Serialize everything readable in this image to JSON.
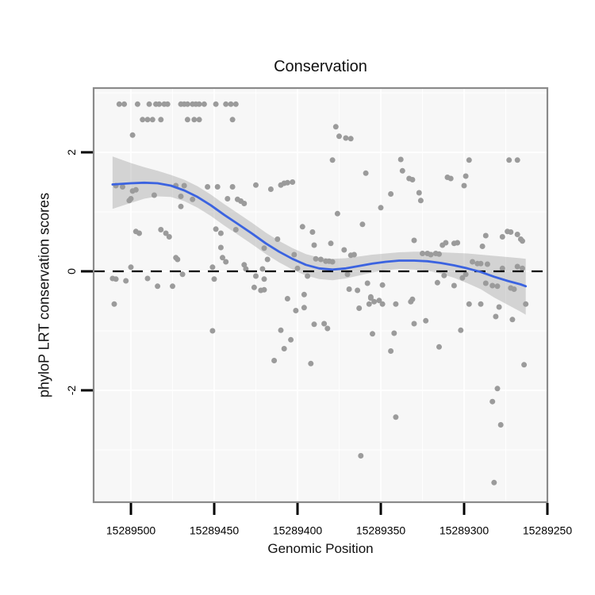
{
  "chart": {
    "title": "Conservation",
    "x_label": "Genomic Position",
    "y_label": "phyloP LRT conservation scores"
  },
  "style": {
    "panel_bg": "#f7f7f7",
    "grid_color": "#ffffff",
    "border_color": "#8a8a8a",
    "tick_color": "#000000",
    "point_color": "#9b9b9b",
    "smooth_color": "#3b63e0",
    "band_color": "rgba(120,120,120,0.28)",
    "reference_color": "#000000"
  },
  "chart_data": {
    "type": "scatter",
    "title": "Conservation",
    "xlabel": "Genomic Position",
    "ylabel": "phyloP LRT conservation scores",
    "legend": "none",
    "grid": "on",
    "x_axis": {
      "reversed": true,
      "value_at_left": 15289522.4,
      "value_at_right": 15289250,
      "ticks": [
        15289500,
        15289450,
        15289400,
        15289350,
        15289300,
        15289250
      ],
      "tick_labels": [
        "15289500",
        "15289450",
        "15289400",
        "15289350",
        "15289300",
        "15289250"
      ],
      "minor_ticks": [
        15289475,
        15289425,
        15289375,
        15289325,
        15289275
      ]
    },
    "y_axis": {
      "value_at_top": 3.08,
      "value_at_bottom": -3.88,
      "ticks": [
        2,
        0,
        -2
      ],
      "tick_labels": [
        "2",
        "0",
        "-2"
      ],
      "minor_ticks": [
        3,
        1,
        -1,
        -3
      ]
    },
    "reference_line": {
      "y": 0,
      "style": "dashed"
    },
    "smooth_line": {
      "name": "loess-smooth",
      "x": [
        15289511,
        15289500,
        15289492,
        15289484,
        15289476,
        15289468,
        15289460,
        15289452,
        15289444,
        15289436,
        15289427,
        15289419,
        15289411,
        15289403,
        15289395,
        15289387,
        15289379,
        15289371,
        15289363,
        15289355,
        15289347,
        15289339,
        15289330,
        15289322,
        15289314,
        15289306,
        15289298,
        15289290,
        15289282,
        15289274,
        15289266,
        15289263
      ],
      "y": [
        1.46,
        1.48,
        1.49,
        1.48,
        1.44,
        1.36,
        1.25,
        1.11,
        0.95,
        0.8,
        0.63,
        0.47,
        0.33,
        0.21,
        0.11,
        0.05,
        0.03,
        0.05,
        0.09,
        0.13,
        0.16,
        0.18,
        0.18,
        0.17,
        0.14,
        0.1,
        0.05,
        -0.01,
        -0.09,
        -0.16,
        -0.22,
        -0.25
      ]
    },
    "confidence_band": {
      "x": [
        15289511,
        15289500,
        15289492,
        15289484,
        15289476,
        15289468,
        15289460,
        15289452,
        15289444,
        15289436,
        15289427,
        15289419,
        15289411,
        15289403,
        15289395,
        15289387,
        15289379,
        15289371,
        15289363,
        15289355,
        15289347,
        15289339,
        15289330,
        15289322,
        15289314,
        15289306,
        15289298,
        15289290,
        15289282,
        15289274,
        15289266,
        15289263
      ],
      "upper": [
        1.93,
        1.82,
        1.75,
        1.69,
        1.62,
        1.54,
        1.43,
        1.29,
        1.13,
        0.98,
        0.81,
        0.65,
        0.51,
        0.39,
        0.29,
        0.23,
        0.21,
        0.22,
        0.25,
        0.28,
        0.3,
        0.32,
        0.33,
        0.33,
        0.32,
        0.31,
        0.3,
        0.28,
        0.26,
        0.24,
        0.22,
        0.21
      ],
      "lower": [
        1.05,
        1.15,
        1.22,
        1.26,
        1.25,
        1.18,
        1.07,
        0.93,
        0.77,
        0.62,
        0.45,
        0.29,
        0.15,
        0.03,
        -0.07,
        -0.13,
        -0.15,
        -0.12,
        -0.07,
        -0.02,
        0.02,
        0.04,
        0.03,
        0.01,
        -0.04,
        -0.11,
        -0.2,
        -0.3,
        -0.44,
        -0.56,
        -0.68,
        -0.73
      ]
    },
    "points": {
      "radius": 3.5,
      "xy": [
        [
          15289507,
          2.81
        ],
        [
          15289504,
          2.81
        ],
        [
          15289496,
          2.81
        ],
        [
          15289489,
          2.81
        ],
        [
          15289485,
          2.81
        ],
        [
          15289483,
          2.81
        ],
        [
          15289480,
          2.81
        ],
        [
          15289478,
          2.81
        ],
        [
          15289470,
          2.81
        ],
        [
          15289468,
          2.81
        ],
        [
          15289466,
          2.81
        ],
        [
          15289463,
          2.81
        ],
        [
          15289461,
          2.81
        ],
        [
          15289459,
          2.81
        ],
        [
          15289456,
          2.81
        ],
        [
          15289449,
          2.81
        ],
        [
          15289443,
          2.81
        ],
        [
          15289440,
          2.81
        ],
        [
          15289437,
          2.81
        ],
        [
          15289493,
          2.55
        ],
        [
          15289490,
          2.55
        ],
        [
          15289487,
          2.55
        ],
        [
          15289482,
          2.55
        ],
        [
          15289466,
          2.55
        ],
        [
          15289462,
          2.55
        ],
        [
          15289459,
          2.55
        ],
        [
          15289439,
          2.55
        ],
        [
          15289499,
          2.29
        ],
        [
          15289377,
          2.43
        ],
        [
          15289375,
          2.27
        ],
        [
          15289371,
          2.24
        ],
        [
          15289368,
          2.23
        ],
        [
          15289379,
          1.87
        ],
        [
          15289338,
          1.88
        ],
        [
          15289337,
          1.69
        ],
        [
          15289359,
          1.65
        ],
        [
          15289297,
          1.87
        ],
        [
          15289273,
          1.87
        ],
        [
          15289268,
          1.87
        ],
        [
          15289333,
          1.56
        ],
        [
          15289331,
          1.54
        ],
        [
          15289310,
          1.58
        ],
        [
          15289308,
          1.56
        ],
        [
          15289299,
          1.6
        ],
        [
          15289300,
          1.44
        ],
        [
          15289327,
          1.32
        ],
        [
          15289326,
          1.19
        ],
        [
          15289509,
          1.44
        ],
        [
          15289505,
          1.42
        ],
        [
          15289499,
          1.35
        ],
        [
          15289497,
          1.37
        ],
        [
          15289501,
          1.19
        ],
        [
          15289500,
          1.22
        ],
        [
          15289486,
          1.28
        ],
        [
          15289473,
          1.44
        ],
        [
          15289468,
          1.44
        ],
        [
          15289470,
          1.26
        ],
        [
          15289470,
          1.09
        ],
        [
          15289463,
          1.21
        ],
        [
          15289454,
          1.42
        ],
        [
          15289448,
          1.42
        ],
        [
          15289439,
          1.42
        ],
        [
          15289442,
          1.22
        ],
        [
          15289436,
          1.21
        ],
        [
          15289434,
          1.18
        ],
        [
          15289432,
          1.14
        ],
        [
          15289425,
          1.45
        ],
        [
          15289416,
          1.38
        ],
        [
          15289410,
          1.45
        ],
        [
          15289408,
          1.48
        ],
        [
          15289406,
          1.49
        ],
        [
          15289403,
          1.5
        ],
        [
          15289344,
          1.3
        ],
        [
          15289350,
          1.07
        ],
        [
          15289376,
          0.97
        ],
        [
          15289361,
          0.79
        ],
        [
          15289397,
          0.75
        ],
        [
          15289391,
          0.66
        ],
        [
          15289390,
          0.44
        ],
        [
          15289412,
          0.54
        ],
        [
          15289380,
          0.47
        ],
        [
          15289497,
          0.67
        ],
        [
          15289495,
          0.64
        ],
        [
          15289482,
          0.7
        ],
        [
          15289479,
          0.64
        ],
        [
          15289477,
          0.58
        ],
        [
          15289449,
          0.71
        ],
        [
          15289446,
          0.64
        ],
        [
          15289437,
          0.7
        ],
        [
          15289446,
          0.4
        ],
        [
          15289287,
          0.6
        ],
        [
          15289289,
          0.42
        ],
        [
          15289277,
          0.58
        ],
        [
          15289274,
          0.67
        ],
        [
          15289272,
          0.66
        ],
        [
          15289268,
          0.62
        ],
        [
          15289266,
          0.54
        ],
        [
          15289265,
          0.51
        ],
        [
          15289313,
          0.44
        ],
        [
          15289311,
          0.48
        ],
        [
          15289306,
          0.47
        ],
        [
          15289304,
          0.48
        ],
        [
          15289330,
          0.52
        ],
        [
          15289445,
          0.23
        ],
        [
          15289443,
          0.16
        ],
        [
          15289473,
          0.23
        ],
        [
          15289472,
          0.2
        ],
        [
          15289372,
          0.36
        ],
        [
          15289368,
          0.27
        ],
        [
          15289366,
          0.28
        ],
        [
          15289420,
          0.39
        ],
        [
          15289418,
          0.2
        ],
        [
          15289402,
          0.28
        ],
        [
          15289400,
          0.05
        ],
        [
          15289389,
          0.21
        ],
        [
          15289386,
          0.2
        ],
        [
          15289383,
          0.17
        ],
        [
          15289381,
          0.17
        ],
        [
          15289379,
          0.16
        ],
        [
          15289325,
          0.3
        ],
        [
          15289322,
          0.3
        ],
        [
          15289320,
          0.28
        ],
        [
          15289317,
          0.3
        ],
        [
          15289315,
          0.29
        ],
        [
          15289295,
          0.16
        ],
        [
          15289292,
          0.13
        ],
        [
          15289290,
          0.13
        ],
        [
          15289286,
          0.12
        ],
        [
          15289277,
          0.05
        ],
        [
          15289268,
          0.08
        ],
        [
          15289265,
          0.05
        ],
        [
          15289432,
          0.11
        ],
        [
          15289431,
          0.04
        ],
        [
          15289421,
          0.04
        ],
        [
          15289500,
          0.07
        ],
        [
          15289451,
          0.07
        ],
        [
          15289469,
          -0.05
        ],
        [
          15289511,
          -0.12
        ],
        [
          15289509,
          -0.13
        ],
        [
          15289503,
          -0.16
        ],
        [
          15289490,
          -0.12
        ],
        [
          15289484,
          -0.25
        ],
        [
          15289475,
          -0.25
        ],
        [
          15289450,
          -0.13
        ],
        [
          15289420,
          -0.13
        ],
        [
          15289425,
          -0.08
        ],
        [
          15289426,
          -0.27
        ],
        [
          15289422,
          -0.32
        ],
        [
          15289420,
          -0.31
        ],
        [
          15289396,
          -0.39
        ],
        [
          15289394,
          -0.08
        ],
        [
          15289370,
          -0.05
        ],
        [
          15289369,
          -0.3
        ],
        [
          15289364,
          -0.32
        ],
        [
          15289358,
          -0.2
        ],
        [
          15289349,
          -0.23
        ],
        [
          15289356,
          -0.43
        ],
        [
          15289312,
          -0.07
        ],
        [
          15289316,
          -0.19
        ],
        [
          15289299,
          -0.05
        ],
        [
          15289301,
          -0.11
        ],
        [
          15289287,
          -0.2
        ],
        [
          15289283,
          -0.24
        ],
        [
          15289280,
          -0.25
        ],
        [
          15289272,
          -0.28
        ],
        [
          15289270,
          -0.3
        ],
        [
          15289306,
          -0.24
        ],
        [
          15289331,
          -0.47
        ],
        [
          15289406,
          -0.46
        ],
        [
          15289510,
          -0.55
        ],
        [
          15289401,
          -0.66
        ],
        [
          15289396,
          -0.61
        ],
        [
          15289390,
          -0.89
        ],
        [
          15289384,
          -0.88
        ],
        [
          15289382,
          -0.96
        ],
        [
          15289363,
          -0.62
        ],
        [
          15289356,
          -0.45
        ],
        [
          15289354,
          -0.51
        ],
        [
          15289351,
          -0.49
        ],
        [
          15289357,
          -0.55
        ],
        [
          15289349,
          -0.55
        ],
        [
          15289341,
          -0.55
        ],
        [
          15289332,
          -0.51
        ],
        [
          15289330,
          -0.88
        ],
        [
          15289323,
          -0.83
        ],
        [
          15289297,
          -0.55
        ],
        [
          15289290,
          -0.55
        ],
        [
          15289279,
          -0.6
        ],
        [
          15289281,
          -0.76
        ],
        [
          15289263,
          -0.55
        ],
        [
          15289271,
          -0.81
        ],
        [
          15289451,
          -1.0
        ],
        [
          15289410,
          -0.99
        ],
        [
          15289404,
          -1.15
        ],
        [
          15289408,
          -1.3
        ],
        [
          15289414,
          -1.5
        ],
        [
          15289392,
          -1.55
        ],
        [
          15289355,
          -1.05
        ],
        [
          15289342,
          -1.04
        ],
        [
          15289344,
          -1.34
        ],
        [
          15289302,
          -0.99
        ],
        [
          15289315,
          -1.27
        ],
        [
          15289264,
          -1.57
        ],
        [
          15289341,
          -2.45
        ],
        [
          15289362,
          -3.1
        ],
        [
          15289280,
          -1.97
        ],
        [
          15289283,
          -2.19
        ],
        [
          15289278,
          -2.58
        ],
        [
          15289282,
          -3.55
        ]
      ]
    }
  }
}
